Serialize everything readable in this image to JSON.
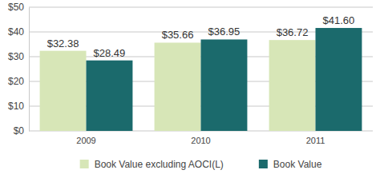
{
  "chart_data": {
    "type": "bar",
    "categories": [
      "2009",
      "2010",
      "2011"
    ],
    "series": [
      {
        "name": "Book Value excluding AOCI(L)",
        "color": "#d7e6b7",
        "values": [
          32.38,
          35.66,
          36.72
        ],
        "value_labels": [
          "$32.38",
          "$35.66",
          "$36.72"
        ]
      },
      {
        "name": "Book Value",
        "color": "#1b6a6c",
        "values": [
          28.49,
          36.95,
          41.6
        ],
        "value_labels": [
          "$28.49",
          "$36.95",
          "$41.60"
        ]
      }
    ],
    "ylim": [
      0,
      50
    ],
    "yticks": [
      {
        "value": 0,
        "label": "$0"
      },
      {
        "value": 10,
        "label": "$10"
      },
      {
        "value": 20,
        "label": "$20"
      },
      {
        "value": 30,
        "label": "$30"
      },
      {
        "value": 40,
        "label": "$40"
      },
      {
        "value": 50,
        "label": "$50"
      }
    ],
    "grid": true,
    "legend": "bottom",
    "data_labels": true
  }
}
